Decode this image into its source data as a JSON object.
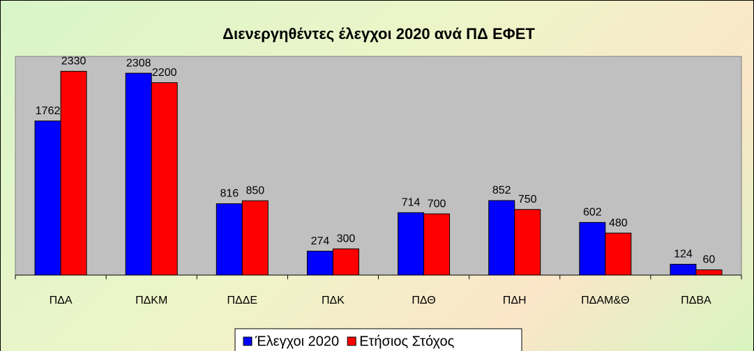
{
  "chart_data": {
    "type": "bar",
    "title": "Διενεργηθέντες έλεγχοι 2020 ανά ΠΔ ΕΦΕΤ",
    "categories": [
      "ΠΔΑ",
      "ΠΔΚΜ",
      "ΠΔΔΕ",
      "ΠΔΚ",
      "ΠΔΘ",
      "ΠΔΗ",
      "ΠΔΑΜ&Θ",
      "ΠΔΒΑ"
    ],
    "series": [
      {
        "name": "Έλεγχοι 2020",
        "color": "#0000ff",
        "values": [
          1762,
          2308,
          816,
          274,
          714,
          852,
          602,
          124
        ]
      },
      {
        "name": "Ετήσιος Στόχος",
        "color": "#ff0000",
        "values": [
          2330,
          2200,
          850,
          300,
          700,
          750,
          480,
          60
        ]
      }
    ],
    "ylim": [
      0,
      2500
    ],
    "legend": "bottom"
  }
}
